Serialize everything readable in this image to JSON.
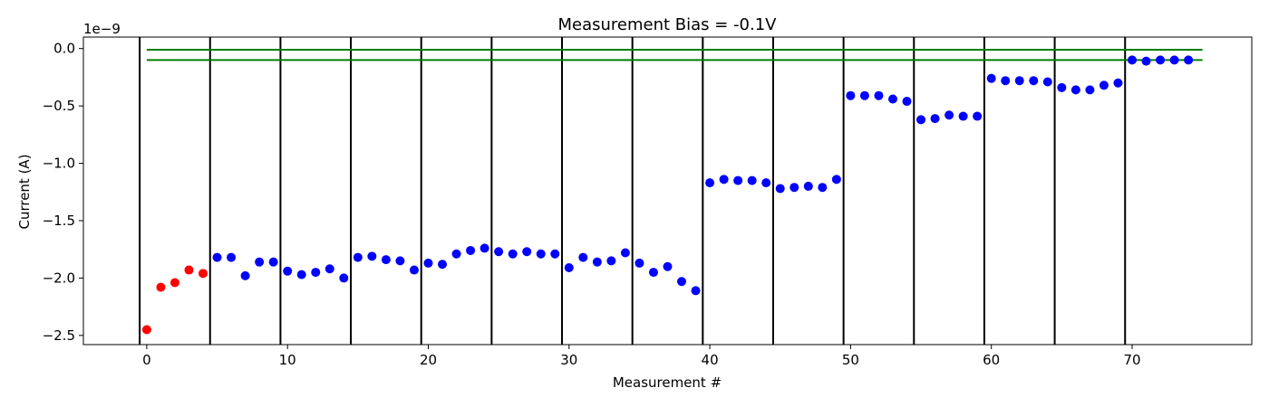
{
  "chart_data": {
    "type": "scatter",
    "title": "Measurement Bias = -0.1V",
    "xlabel": "Measurement #",
    "ylabel": "Current (A)",
    "y_offset_label": "1e−9",
    "xlim": [
      -4.5,
      78.5
    ],
    "ylim": [
      -2.58,
      0.1
    ],
    "x_ticks": [
      0,
      10,
      20,
      30,
      40,
      50,
      60,
      70
    ],
    "x_tick_labels": [
      "0",
      "10",
      "20",
      "30",
      "40",
      "50",
      "60",
      "70"
    ],
    "y_ticks": [
      0.0,
      -0.5,
      -1.0,
      -1.5,
      -2.0,
      -2.5
    ],
    "y_tick_labels": [
      "0.0",
      "−0.5",
      "−1.0",
      "−1.5",
      "−2.0",
      "−2.5"
    ],
    "grid": false,
    "vertical_lines_x": [
      -0.5,
      4.5,
      9.5,
      14.5,
      19.5,
      24.5,
      29.5,
      34.5,
      39.5,
      44.5,
      49.5,
      54.5,
      59.5,
      64.5,
      69.5
    ],
    "vertical_line_color": "#000000",
    "horizontal_lines": [
      {
        "y": -0.01,
        "x_start": 0,
        "x_end": 75,
        "color": "#008000"
      },
      {
        "y": -0.1,
        "x_start": 0,
        "x_end": 75,
        "color": "#008000"
      }
    ],
    "series": [
      {
        "color": "#ff0000",
        "x": [
          0,
          1,
          2,
          3,
          4
        ],
        "y": [
          -2.45,
          -2.08,
          -2.04,
          -1.93,
          -1.96
        ]
      },
      {
        "color": "#0000ff",
        "x": [
          5,
          6,
          7,
          8,
          9,
          10,
          11,
          12,
          13,
          14,
          15,
          16,
          17,
          18,
          19,
          20,
          21,
          22,
          23,
          24,
          25,
          26,
          27,
          28,
          29,
          30,
          31,
          32,
          33,
          34,
          35,
          36,
          37,
          38,
          39,
          40,
          41,
          42,
          43,
          44,
          45,
          46,
          47,
          48,
          49,
          50,
          51,
          52,
          53,
          54,
          55,
          56,
          57,
          58,
          59,
          60,
          61,
          62,
          63,
          64,
          65,
          66,
          67,
          68,
          69,
          70,
          71,
          72,
          73,
          74
        ],
        "y": [
          -1.82,
          -1.82,
          -1.98,
          -1.86,
          -1.86,
          -1.94,
          -1.97,
          -1.95,
          -1.92,
          -2.0,
          -1.82,
          -1.81,
          -1.84,
          -1.85,
          -1.93,
          -1.87,
          -1.88,
          -1.79,
          -1.76,
          -1.74,
          -1.77,
          -1.79,
          -1.77,
          -1.79,
          -1.79,
          -1.91,
          -1.82,
          -1.86,
          -1.85,
          -1.78,
          -1.87,
          -1.95,
          -1.9,
          -2.03,
          -2.11,
          -1.17,
          -1.14,
          -1.15,
          -1.15,
          -1.17,
          -1.22,
          -1.21,
          -1.2,
          -1.21,
          -1.14,
          -0.41,
          -0.41,
          -0.41,
          -0.44,
          -0.46,
          -0.62,
          -0.61,
          -0.58,
          -0.59,
          -0.59,
          -0.26,
          -0.28,
          -0.28,
          -0.28,
          -0.29,
          -0.34,
          -0.36,
          -0.36,
          -0.32,
          -0.3,
          -0.1,
          -0.11,
          -0.1,
          -0.1,
          -0.1
        ]
      }
    ]
  }
}
